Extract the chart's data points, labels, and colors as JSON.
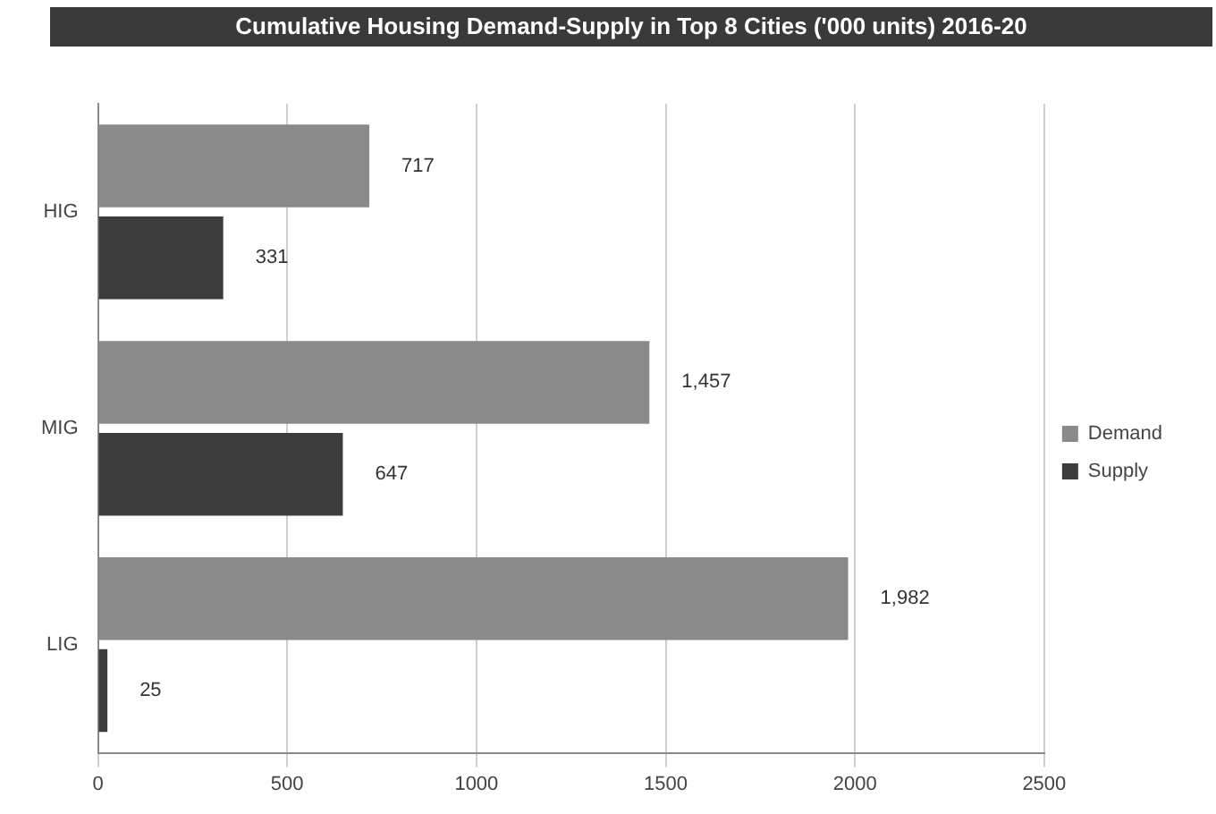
{
  "chart_data": {
    "type": "bar",
    "orientation": "horizontal",
    "title": "Cumulative Housing Demand-Supply in Top 8 Cities ('000 units) 2016-20",
    "categories": [
      "HIG",
      "MIG",
      "LIG"
    ],
    "series": [
      {
        "name": "Demand",
        "color": "#8a8a8a",
        "values": [
          717,
          1457,
          1982
        ],
        "value_labels": [
          "717",
          "1,457",
          "1,982"
        ]
      },
      {
        "name": "Supply",
        "color": "#3c3c3c",
        "values": [
          331,
          647,
          25
        ],
        "value_labels": [
          "331",
          "647",
          "25"
        ]
      }
    ],
    "xlim": [
      0,
      2500
    ],
    "xticks": [
      0,
      500,
      1000,
      1500,
      2000,
      2500
    ],
    "grid": "x",
    "legend": "right"
  }
}
